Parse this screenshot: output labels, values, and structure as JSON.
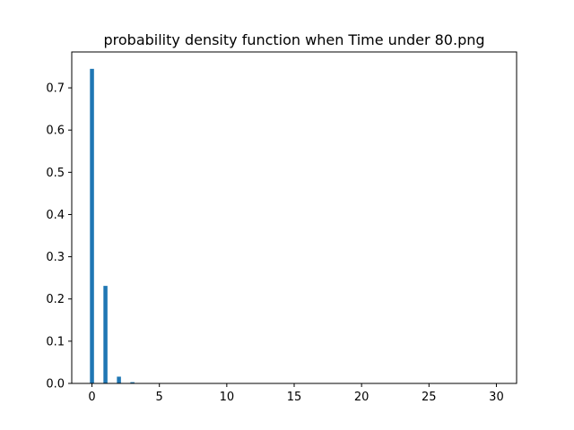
{
  "chart_data": {
    "type": "bar",
    "title": "probability density function when Time under 80.png",
    "xlabel": "",
    "ylabel": "",
    "xlim": [
      -1.5,
      31.5
    ],
    "ylim": [
      0,
      0.785
    ],
    "x_ticks": [
      0,
      5,
      10,
      15,
      20,
      25,
      30
    ],
    "x_tick_labels": [
      "0",
      "5",
      "10",
      "15",
      "20",
      "25",
      "30"
    ],
    "y_ticks": [
      0.0,
      0.1,
      0.2,
      0.3,
      0.4,
      0.5,
      0.6,
      0.7
    ],
    "y_tick_labels": [
      "0.0",
      "0.1",
      "0.2",
      "0.3",
      "0.4",
      "0.5",
      "0.6",
      "0.7"
    ],
    "bar_width": 0.3,
    "grid": false,
    "bar_color": "#1f77b4",
    "x": [
      0,
      1,
      2,
      3,
      4,
      5
    ],
    "values": [
      0.745,
      0.231,
      0.016,
      0.003,
      0.001,
      0.0005
    ]
  }
}
